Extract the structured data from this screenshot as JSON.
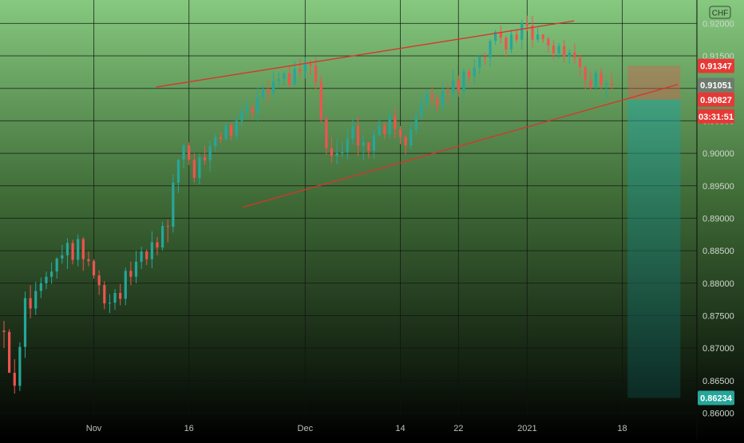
{
  "symbol_badge": "CHF",
  "colors": {
    "bull": "#26a69a",
    "bear": "#ef5350",
    "trendline": "#d9342b",
    "grid": "#111111",
    "bg_top": "#86c97f",
    "bg_bottom": "#000000",
    "badge_red": "#e53935",
    "badge_gray": "#6f7b6f",
    "badge_teal": "#26a69a"
  },
  "chart_data": {
    "type": "candlestick",
    "title": "",
    "xlabel": "",
    "ylabel": "",
    "grid": true,
    "ylim": [
      0.8565,
      0.9225
    ],
    "x_ticks": [
      {
        "label": "Nov",
        "index": 17
      },
      {
        "label": "16",
        "index": 35
      },
      {
        "label": "Dec",
        "index": 57
      },
      {
        "label": "14",
        "index": 75
      },
      {
        "label": "22",
        "index": 86
      },
      {
        "label": "2021",
        "index": 99
      },
      {
        "label": "18",
        "index": 117
      }
    ],
    "y_ticks": [
      0.86,
      0.865,
      0.87,
      0.875,
      0.88,
      0.885,
      0.89,
      0.895,
      0.9,
      0.905,
      0.91,
      0.915,
      0.92
    ],
    "price_badges": [
      {
        "label": "0.91347",
        "value": 0.91347,
        "style": "red"
      },
      {
        "label": "0.91051",
        "value": 0.91051,
        "style": "gray"
      },
      {
        "label": "0.90827",
        "value": 0.90827,
        "style": "red"
      },
      {
        "label": "03:31:51",
        "value": 0.90827,
        "style": "red",
        "offset": 1
      },
      {
        "label": "0.86234",
        "value": 0.86234,
        "style": "teal"
      }
    ],
    "trendlines": [
      {
        "start": [
          28.8,
          0.9102
        ],
        "end": [
          107.9,
          0.9204
        ]
      },
      {
        "start": [
          45.2,
          0.8917
        ],
        "end": [
          127.5,
          0.9106
        ]
      }
    ],
    "position_zone": {
      "start_index": 118,
      "end_index": 128,
      "entry": 0.90827,
      "target": 0.91347,
      "stop": 0.86234
    },
    "ohlc": [
      [
        0.8727,
        0.8725,
        0.87,
        0.8742
      ],
      [
        0.8725,
        0.8662,
        0.8662,
        0.8729
      ],
      [
        0.8662,
        0.8642,
        0.863,
        0.8683
      ],
      [
        0.8642,
        0.8702,
        0.8634,
        0.8709
      ],
      [
        0.8702,
        0.8777,
        0.8685,
        0.8787
      ],
      [
        0.8777,
        0.8761,
        0.8746,
        0.8797
      ],
      [
        0.8761,
        0.8788,
        0.8751,
        0.8802
      ],
      [
        0.8788,
        0.88,
        0.8777,
        0.8809
      ],
      [
        0.88,
        0.881,
        0.8791,
        0.8818
      ],
      [
        0.881,
        0.8818,
        0.8799,
        0.8832
      ],
      [
        0.8818,
        0.8838,
        0.8807,
        0.884
      ],
      [
        0.8838,
        0.8843,
        0.883,
        0.8859
      ],
      [
        0.8843,
        0.8862,
        0.8822,
        0.8869
      ],
      [
        0.8862,
        0.8836,
        0.8829,
        0.8867
      ],
      [
        0.8836,
        0.8868,
        0.8826,
        0.8875
      ],
      [
        0.8868,
        0.8837,
        0.8819,
        0.8871
      ],
      [
        0.8837,
        0.8834,
        0.8826,
        0.8849
      ],
      [
        0.8834,
        0.8812,
        0.8807,
        0.8837
      ],
      [
        0.8812,
        0.8797,
        0.8782,
        0.882
      ],
      [
        0.8797,
        0.8769,
        0.876,
        0.8803
      ],
      [
        0.8769,
        0.877,
        0.8754,
        0.8783
      ],
      [
        0.877,
        0.8785,
        0.8759,
        0.8791
      ],
      [
        0.8785,
        0.8776,
        0.8766,
        0.8799
      ],
      [
        0.8776,
        0.8819,
        0.8766,
        0.8824
      ],
      [
        0.8819,
        0.881,
        0.8797,
        0.8833
      ],
      [
        0.881,
        0.8833,
        0.88,
        0.885
      ],
      [
        0.8833,
        0.8849,
        0.8822,
        0.8856
      ],
      [
        0.8849,
        0.8837,
        0.8828,
        0.8852
      ],
      [
        0.8837,
        0.8863,
        0.8823,
        0.888
      ],
      [
        0.8863,
        0.8855,
        0.8843,
        0.8871
      ],
      [
        0.8855,
        0.8888,
        0.885,
        0.8895
      ],
      [
        0.8888,
        0.8887,
        0.8863,
        0.8898
      ],
      [
        0.8887,
        0.8955,
        0.8878,
        0.8968
      ],
      [
        0.8955,
        0.899,
        0.8939,
        0.8992
      ],
      [
        0.899,
        0.9012,
        0.8977,
        0.9015
      ],
      [
        0.9012,
        0.899,
        0.8982,
        0.9017
      ],
      [
        0.899,
        0.8962,
        0.8955,
        0.9
      ],
      [
        0.8962,
        0.8994,
        0.8952,
        0.9
      ],
      [
        0.8994,
        0.8989,
        0.8982,
        0.9011
      ],
      [
        0.8989,
        0.9011,
        0.8972,
        0.9019
      ],
      [
        0.9011,
        0.9025,
        0.9003,
        0.903
      ],
      [
        0.9025,
        0.9022,
        0.9016,
        0.9033
      ],
      [
        0.9022,
        0.9043,
        0.9019,
        0.9047
      ],
      [
        0.9043,
        0.9027,
        0.902,
        0.9047
      ],
      [
        0.9027,
        0.905,
        0.9021,
        0.9059
      ],
      [
        0.905,
        0.9064,
        0.9042,
        0.9076
      ],
      [
        0.9064,
        0.907,
        0.9054,
        0.9084
      ],
      [
        0.907,
        0.9062,
        0.9053,
        0.9077
      ],
      [
        0.9062,
        0.9086,
        0.905,
        0.9101
      ],
      [
        0.9086,
        0.9098,
        0.9083,
        0.9105
      ],
      [
        0.9098,
        0.9093,
        0.9079,
        0.9112
      ],
      [
        0.9093,
        0.9111,
        0.9085,
        0.9127
      ],
      [
        0.9111,
        0.9115,
        0.9102,
        0.9125
      ],
      [
        0.9115,
        0.9123,
        0.9104,
        0.9126
      ],
      [
        0.9123,
        0.9106,
        0.9101,
        0.9135
      ],
      [
        0.9106,
        0.913,
        0.9101,
        0.9142
      ],
      [
        0.913,
        0.9126,
        0.9116,
        0.9146
      ],
      [
        0.9126,
        0.9138,
        0.9115,
        0.9148
      ],
      [
        0.9138,
        0.9135,
        0.9121,
        0.9143
      ],
      [
        0.9135,
        0.911,
        0.9098,
        0.9148
      ],
      [
        0.911,
        0.9053,
        0.9047,
        0.912
      ],
      [
        0.9053,
        0.9008,
        0.8998,
        0.9057
      ],
      [
        0.9008,
        0.8996,
        0.8985,
        0.9025
      ],
      [
        0.8996,
        0.9,
        0.8983,
        0.9022
      ],
      [
        0.9,
        0.9002,
        0.8994,
        0.9018
      ],
      [
        0.9002,
        0.9022,
        0.8991,
        0.9038
      ],
      [
        0.9022,
        0.9042,
        0.9014,
        0.9054
      ],
      [
        0.9042,
        0.9012,
        0.8996,
        0.9057
      ],
      [
        0.9012,
        0.9017,
        0.8989,
        0.9028
      ],
      [
        0.9017,
        0.9004,
        0.8992,
        0.9016
      ],
      [
        0.9004,
        0.9028,
        0.8991,
        0.9036
      ],
      [
        0.9028,
        0.9043,
        0.9026,
        0.9053
      ],
      [
        0.9043,
        0.903,
        0.9022,
        0.9049
      ],
      [
        0.903,
        0.9058,
        0.9023,
        0.9068
      ],
      [
        0.9058,
        0.9037,
        0.9023,
        0.907
      ],
      [
        0.9037,
        0.9025,
        0.9014,
        0.9042
      ],
      [
        0.9025,
        0.9012,
        0.8999,
        0.9028
      ],
      [
        0.9012,
        0.9036,
        0.9006,
        0.9048
      ],
      [
        0.9036,
        0.9057,
        0.9029,
        0.9066
      ],
      [
        0.9057,
        0.9077,
        0.9051,
        0.9091
      ],
      [
        0.9077,
        0.9091,
        0.907,
        0.9099
      ],
      [
        0.9091,
        0.9084,
        0.9073,
        0.9104
      ],
      [
        0.9084,
        0.9074,
        0.9064,
        0.9091
      ],
      [
        0.9074,
        0.9095,
        0.9066,
        0.9109
      ],
      [
        0.9095,
        0.9093,
        0.9077,
        0.9108
      ],
      [
        0.9093,
        0.9112,
        0.9081,
        0.9128
      ],
      [
        0.9112,
        0.9096,
        0.9087,
        0.912
      ],
      [
        0.9096,
        0.9126,
        0.9086,
        0.9131
      ],
      [
        0.9126,
        0.9118,
        0.9108,
        0.913
      ],
      [
        0.9118,
        0.9132,
        0.9106,
        0.9145
      ],
      [
        0.9132,
        0.9149,
        0.9122,
        0.9152
      ],
      [
        0.9149,
        0.9147,
        0.9136,
        0.9155
      ],
      [
        0.9147,
        0.9173,
        0.9134,
        0.9176
      ],
      [
        0.9173,
        0.9187,
        0.9167,
        0.919
      ],
      [
        0.9187,
        0.9178,
        0.9169,
        0.9197
      ],
      [
        0.9178,
        0.916,
        0.9148,
        0.9181
      ],
      [
        0.916,
        0.9183,
        0.9154,
        0.919
      ],
      [
        0.9183,
        0.9175,
        0.917,
        0.9189
      ],
      [
        0.9175,
        0.92,
        0.916,
        0.9206
      ],
      [
        0.92,
        0.9197,
        0.9188,
        0.9212
      ],
      [
        0.9197,
        0.9175,
        0.9163,
        0.9212
      ],
      [
        0.9175,
        0.9183,
        0.9171,
        0.9193
      ],
      [
        0.9183,
        0.9176,
        0.917,
        0.9181
      ],
      [
        0.9176,
        0.9166,
        0.9155,
        0.918
      ],
      [
        0.9166,
        0.9154,
        0.9144,
        0.9174
      ],
      [
        0.9154,
        0.9165,
        0.9146,
        0.917
      ],
      [
        0.9165,
        0.9149,
        0.914,
        0.9175
      ],
      [
        0.9149,
        0.9155,
        0.9138,
        0.916
      ],
      [
        0.9155,
        0.9147,
        0.9138,
        0.9169
      ],
      [
        0.9147,
        0.9132,
        0.9118,
        0.9152
      ],
      [
        0.9132,
        0.9112,
        0.9099,
        0.9135
      ],
      [
        0.9112,
        0.9102,
        0.9096,
        0.9126
      ],
      [
        0.9102,
        0.9124,
        0.9096,
        0.9128
      ],
      [
        0.9124,
        0.9106,
        0.9098,
        0.9132
      ],
      [
        0.9106,
        0.9108,
        0.9084,
        0.9112
      ],
      [
        0.9108,
        0.9105,
        0.9095,
        0.9124
      ]
    ]
  }
}
